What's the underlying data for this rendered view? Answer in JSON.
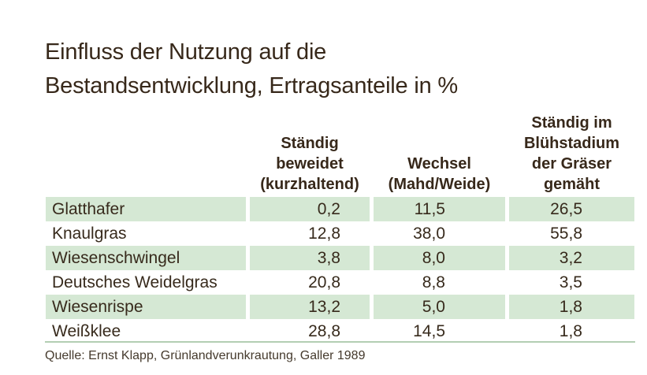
{
  "title": "Einfluss der Nutzung auf die\nBestandsentwicklung, Ertragsanteile in %",
  "table": {
    "row_header_label": "",
    "col_headers": [
      "Ständig\nbeweidet\n(kurzhaltend)",
      "Wechsel\n(Mahd/Weide)",
      "Ständig im\nBlühstadium\nder Gräser\ngemäht"
    ],
    "rows": [
      {
        "name": "Glatthafer",
        "values": [
          "0,2",
          "11,5",
          "26,5"
        ]
      },
      {
        "name": "Knaulgras",
        "values": [
          "12,8",
          "38,0",
          "55,8"
        ]
      },
      {
        "name": "Wiesenschwingel",
        "values": [
          "3,8",
          "8,0",
          "3,2"
        ]
      },
      {
        "name": "Deutsches Weidelgras",
        "values": [
          "20,8",
          "8,8",
          "3,5"
        ]
      },
      {
        "name": "Wiesenrispe",
        "values": [
          "13,2",
          "5,0",
          "1,8"
        ]
      },
      {
        "name": "Weißklee",
        "values": [
          "28,8",
          "14,5",
          "1,8"
        ]
      }
    ]
  },
  "footer": {
    "source": "Quelle: Ernst Klapp, Grünlandverunkrautung, Galler 1989"
  },
  "colors": {
    "row_highlight": "#d5e8d4",
    "divider_line": "#b3ceb3",
    "text": "#372a1c",
    "background": "#ffffff"
  },
  "chart_data": {
    "type": "table",
    "title": "Einfluss der Nutzung auf die Bestandsentwicklung, Ertragsanteile in %",
    "columns": [
      "Ständig beweidet (kurzhaltend)",
      "Wechsel (Mahd/Weide)",
      "Ständig im Blühstadium der Gräser gemäht"
    ],
    "categories": [
      "Glatthafer",
      "Knaulgras",
      "Wiesenschwingel",
      "Deutsches Weidelgras",
      "Wiesenrispe",
      "Weißklee"
    ],
    "series": [
      {
        "name": "Ständig beweidet (kurzhaltend)",
        "values": [
          0.2,
          12.8,
          3.8,
          20.8,
          13.2,
          28.8
        ]
      },
      {
        "name": "Wechsel (Mahd/Weide)",
        "values": [
          11.5,
          38.0,
          8.0,
          8.8,
          5.0,
          14.5
        ]
      },
      {
        "name": "Ständig im Blühstadium der Gräser gemäht",
        "values": [
          26.5,
          55.8,
          3.2,
          3.5,
          1.8,
          1.8
        ]
      }
    ],
    "unit": "%",
    "source": "Quelle: Ernst Klapp, Grünlandverunkrautung, Galler 1989"
  }
}
